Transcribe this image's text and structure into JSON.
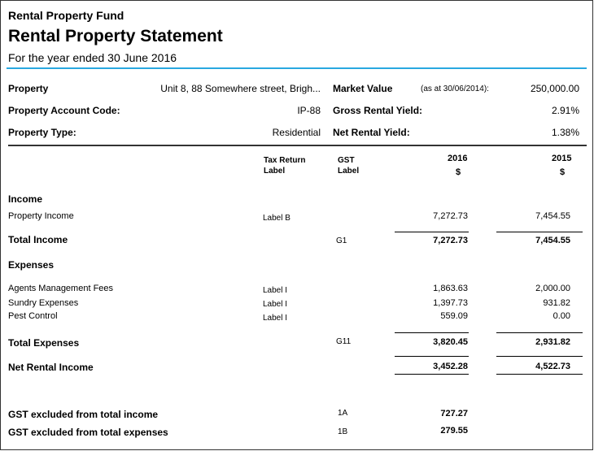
{
  "header": {
    "fund": "Rental Property Fund",
    "title": "Rental Property Statement",
    "subtitle": "For the year ended 30 June 2016"
  },
  "details": {
    "property_label": "Property",
    "property_value": "Unit 8, 88 Somewhere street, Brigh...",
    "code_label": "Property Account Code:",
    "code_value": "IP-88",
    "type_label": "Property Type:",
    "type_value": "Residential",
    "market_label": "Market Value",
    "market_note": "(as at 30/06/2014):",
    "market_value": "250,000.00",
    "gross_label": "Gross Rental Yield:",
    "gross_value": "2.91%",
    "net_label": "Net Rental Yield:",
    "net_value": "1.38%"
  },
  "columns": {
    "tax1": "Tax Return",
    "tax2": "Label",
    "gst1": "GST",
    "gst2": "Label",
    "y2016": "2016",
    "y2015": "2015",
    "cur": "$"
  },
  "income": {
    "heading": "Income",
    "rows": [
      {
        "name": "Property Income",
        "tax": "Label B",
        "v2016": "7,272.73",
        "v2015": "7,454.55"
      }
    ],
    "total": {
      "name": "Total Income",
      "gst": "G1",
      "v2016": "7,272.73",
      "v2015": "7,454.55"
    }
  },
  "expenses": {
    "heading": "Expenses",
    "rows": [
      {
        "name": "Agents Management Fees",
        "tax": "Label I",
        "v2016": "1,863.63",
        "v2015": "2,000.00"
      },
      {
        "name": "Sundry Expenses",
        "tax": "Label I",
        "v2016": "1,397.73",
        "v2015": "931.82"
      },
      {
        "name": "Pest Control",
        "tax": "Label I",
        "v2016": "559.09",
        "v2015": "0.00"
      }
    ],
    "total": {
      "name": "Total Expenses",
      "gst": "G11",
      "v2016": "3,820.45",
      "v2015": "2,931.82"
    }
  },
  "net": {
    "name": "Net Rental Income",
    "v2016": "3,452.28",
    "v2015": "4,522.73"
  },
  "gst": [
    {
      "name": "GST excluded from total income",
      "code": "1A",
      "v2016": "727.27"
    },
    {
      "name": "GST excluded from total expenses",
      "code": "1B",
      "v2016": "279.55"
    }
  ],
  "colors": {
    "accent": "#29a8e0"
  }
}
